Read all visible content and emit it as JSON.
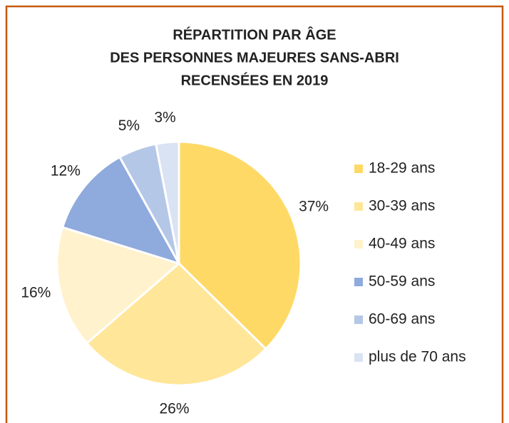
{
  "chart_data": {
    "type": "pie",
    "title": [
      "RÉPARTITION PAR ÂGE",
      "DES PERSONNES MAJEURES SANS-ABRI",
      "RECENSÉES EN 2019"
    ],
    "categories": [
      "18-29 ans",
      "30-39 ans",
      "40-49 ans",
      "50-59 ans",
      "60-69 ans",
      "plus de 70 ans"
    ],
    "values": [
      37,
      26,
      16,
      12,
      5,
      3
    ],
    "value_labels": [
      "37%",
      "26%",
      "16%",
      "12%",
      "5%",
      "3%"
    ],
    "colors": [
      "#ffd966",
      "#ffe699",
      "#fff2cc",
      "#8faadc",
      "#b4c7e7",
      "#dae3f3"
    ],
    "legend": "right"
  }
}
